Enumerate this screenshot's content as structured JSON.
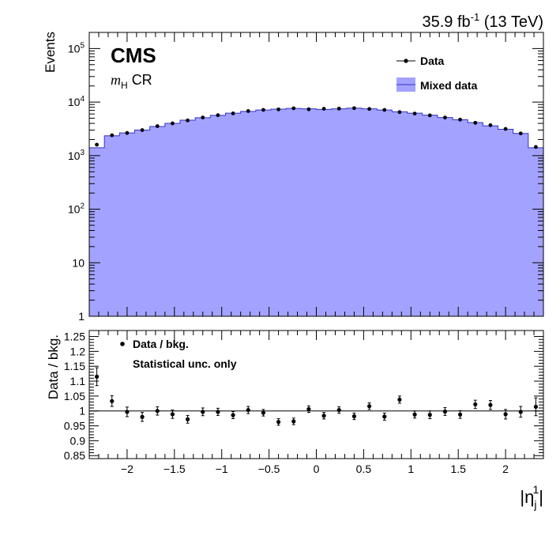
{
  "header": {
    "lumi": "35.9 fb",
    "lumi_exp": "-1",
    "energy": "(13 TeV)"
  },
  "labels": {
    "cms": "CMS",
    "region_symbol": "m",
    "region_sub": "H",
    "region_suffix": "CR"
  },
  "chart_data": [
    {
      "type": "area",
      "ylabel": "Events",
      "ylog": true,
      "xlim": [
        -2.4,
        2.4
      ],
      "ylim": [
        1,
        200000
      ],
      "y_tick_labels": [
        "1",
        "10",
        "10^2",
        "10^3",
        "10^4",
        "10^5"
      ],
      "legend": {
        "placement": "top-right",
        "entries": [
          "Data",
          "Mixed data"
        ]
      },
      "colors": {
        "mixed": "#a3a3ff",
        "mixed_line": "#3333cc",
        "data": "#000000"
      },
      "bin_edges": [
        -2.4,
        -2.24,
        -2.08,
        -1.92,
        -1.76,
        -1.6,
        -1.44,
        -1.28,
        -1.12,
        -0.96,
        -0.8,
        -0.64,
        -0.48,
        -0.32,
        -0.16,
        0,
        0.16,
        0.32,
        0.48,
        0.64,
        0.8,
        0.96,
        1.12,
        1.28,
        1.44,
        1.6,
        1.76,
        1.92,
        2.08,
        2.24,
        2.4
      ],
      "series": [
        {
          "name": "Mixed data",
          "style": "filled-histogram",
          "values": [
            1400,
            2350,
            2650,
            3000,
            3500,
            4000,
            4600,
            5100,
            5650,
            6200,
            6700,
            7100,
            7400,
            7600,
            7500,
            7300,
            7500,
            7700,
            7500,
            7100,
            6600,
            6200,
            5700,
            5150,
            4700,
            4150,
            3600,
            3100,
            2600,
            1400
          ]
        },
        {
          "name": "Data",
          "style": "points",
          "values": [
            1600,
            2400,
            2650,
            3000,
            3550,
            4000,
            4550,
            5150,
            5700,
            6150,
            6800,
            7150,
            7300,
            7650,
            7350,
            7500,
            7550,
            7700,
            7450,
            7150,
            6500,
            6100,
            5650,
            5150,
            4700,
            4100,
            3700,
            3150,
            2600,
            1450
          ]
        }
      ]
    },
    {
      "type": "scatter",
      "ylabel": "Data / bkg.",
      "xlabel": "|η_j^1|",
      "xlim": [
        -2.4,
        2.4
      ],
      "ylim": [
        0.84,
        1.27
      ],
      "x_ticks": [
        -2,
        -1.5,
        -1,
        -0.5,
        0,
        0.5,
        1,
        1.5,
        2
      ],
      "x_tick_labels": [
        "−2",
        "−1.5",
        "−1",
        "−0.5",
        "0",
        "0.5",
        "1",
        "1.5",
        "2"
      ],
      "y_ticks": [
        0.85,
        0.9,
        0.95,
        1,
        1.05,
        1.1,
        1.15,
        1.2,
        1.25
      ],
      "y_tick_labels": [
        "0.85",
        "0.9",
        "0.95",
        "1",
        "1.05",
        "1.1",
        "1.15",
        "1.2",
        "1.25"
      ],
      "reference_line": 1,
      "legend": {
        "placement": "top-left",
        "entries": [
          "Data / bkg.",
          "Statistical unc. only"
        ]
      },
      "series": [
        {
          "name": "Data / bkg.",
          "x": [
            -2.32,
            -2.16,
            -2.0,
            -1.84,
            -1.68,
            -1.52,
            -1.36,
            -1.2,
            -1.04,
            -0.88,
            -0.72,
            -0.56,
            -0.4,
            -0.24,
            -0.08,
            0.08,
            0.24,
            0.4,
            0.56,
            0.72,
            0.88,
            1.04,
            1.2,
            1.36,
            1.52,
            1.68,
            1.84,
            2.0,
            2.16,
            2.32
          ],
          "values": [
            1.115,
            1.033,
            0.997,
            0.98,
            1.0,
            0.989,
            0.972,
            0.997,
            0.997,
            0.986,
            1.003,
            0.994,
            0.963,
            0.965,
            1.006,
            0.984,
            1.003,
            0.982,
            1.016,
            0.981,
            1.038,
            0.988,
            0.987,
            0.998,
            0.988,
            1.022,
            1.02,
            0.989,
            0.997,
            1.014
          ],
          "errors": [
            0.03,
            0.018,
            0.016,
            0.015,
            0.014,
            0.014,
            0.013,
            0.013,
            0.012,
            0.012,
            0.012,
            0.011,
            0.011,
            0.011,
            0.011,
            0.011,
            0.011,
            0.011,
            0.011,
            0.012,
            0.012,
            0.012,
            0.013,
            0.013,
            0.013,
            0.014,
            0.015,
            0.016,
            0.018,
            0.03
          ]
        }
      ]
    }
  ]
}
